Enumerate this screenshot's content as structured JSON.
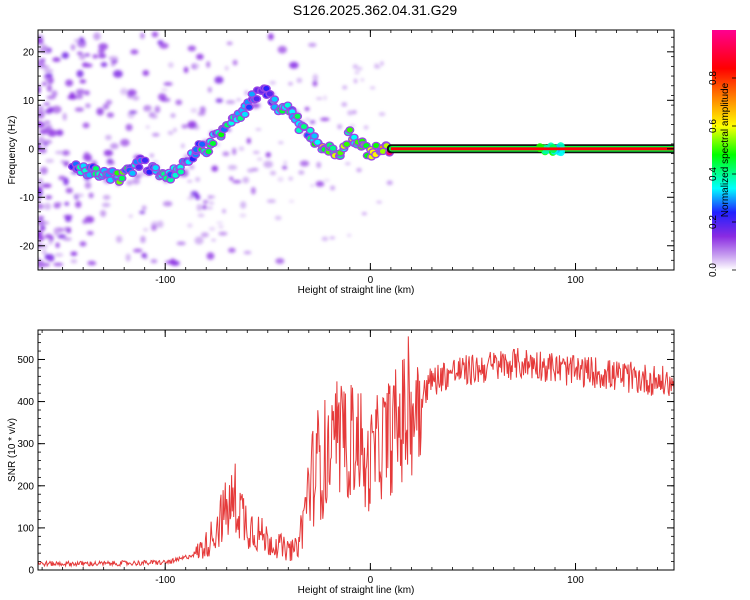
{
  "title": "S126.2025.362.04.31.G29",
  "chart_data": [
    {
      "type": "heatmap",
      "panel": "spectrogram",
      "xlabel": "Height of straight line (km)",
      "ylabel": "Frequency (Hz)",
      "xlim": [
        -162,
        148
      ],
      "ylim": [
        -25,
        24.5
      ],
      "x_ticks": [
        -100,
        0,
        100
      ],
      "y_ticks": [
        -20,
        -10,
        0,
        10,
        20
      ],
      "colorbar": {
        "label": "Normalized spectral amplitude",
        "range": [
          0,
          1
        ],
        "ticks": [
          0.0,
          0.2,
          0.4,
          0.6,
          0.8
        ],
        "tick_labels": [
          "0.0",
          "0.2",
          "0.4",
          "0.6",
          "0.8"
        ],
        "colors": [
          "#ffffff",
          "#c8a0f0",
          "#8a2be2",
          "#2020ff",
          "#00ffff",
          "#00ff00",
          "#ffff00",
          "#ff8000",
          "#ff0000",
          "#ff0090"
        ]
      },
      "ridge": [
        {
          "x": -145,
          "y": -4,
          "amp": 0.35
        },
        {
          "x": -130,
          "y": -5,
          "amp": 0.4
        },
        {
          "x": -122,
          "y": -6,
          "amp": 0.5
        },
        {
          "x": -112,
          "y": -3,
          "amp": 0.3
        },
        {
          "x": -100,
          "y": -6,
          "amp": 0.4
        },
        {
          "x": -92,
          "y": -4,
          "amp": 0.4
        },
        {
          "x": -85,
          "y": 0,
          "amp": 0.35
        },
        {
          "x": -80,
          "y": 0,
          "amp": 0.5
        },
        {
          "x": -75,
          "y": 3,
          "amp": 0.45
        },
        {
          "x": -65,
          "y": 6,
          "amp": 0.4
        },
        {
          "x": -58,
          "y": 10,
          "amp": 0.3
        },
        {
          "x": -52,
          "y": 13,
          "amp": 0.25
        },
        {
          "x": -45,
          "y": 8,
          "amp": 0.4
        },
        {
          "x": -38,
          "y": 8,
          "amp": 0.45
        },
        {
          "x": -35,
          "y": 5,
          "amp": 0.4
        },
        {
          "x": -30,
          "y": 3,
          "amp": 0.4
        },
        {
          "x": -25,
          "y": 1,
          "amp": 0.55
        },
        {
          "x": -20,
          "y": 0,
          "amp": 0.7
        },
        {
          "x": -15,
          "y": -1,
          "amp": 0.5
        },
        {
          "x": -10,
          "y": 3,
          "amp": 0.55
        },
        {
          "x": -5,
          "y": 1,
          "amp": 0.5
        },
        {
          "x": 0,
          "y": -1,
          "amp": 0.55
        },
        {
          "x": 5,
          "y": 0,
          "amp": 0.65
        },
        {
          "x": 10,
          "y": 0,
          "amp": 0.95
        },
        {
          "x": 85,
          "y": 0,
          "amp": 0.6
        },
        {
          "x": 95,
          "y": 0,
          "amp": 0.75
        },
        {
          "x": 145,
          "y": 0,
          "amp": 0.9
        }
      ],
      "steady_band": {
        "x_start": 10,
        "x_end": 148,
        "y": 0
      }
    },
    {
      "type": "line",
      "panel": "snr",
      "xlabel": "Height of straight line (km)",
      "ylabel": "SNR (10 * v/v)",
      "xlim": [
        -162,
        148
      ],
      "ylim": [
        0,
        570
      ],
      "x_ticks": [
        -100,
        0,
        100
      ],
      "y_ticks": [
        0,
        100,
        200,
        300,
        400,
        500
      ],
      "series": [
        {
          "name": "SNR",
          "color": "#e53a3a",
          "x": [
            -162,
            -150,
            -140,
            -130,
            -120,
            -110,
            -100,
            -95,
            -90,
            -85,
            -80,
            -76,
            -72,
            -68,
            -66,
            -64,
            -60,
            -55,
            -50,
            -45,
            -40,
            -36,
            -33,
            -30,
            -25,
            -20,
            -15,
            -10,
            -8,
            -5,
            -3,
            0,
            5,
            10,
            15,
            20,
            25,
            30,
            40,
            50,
            60,
            70,
            80,
            90,
            100,
            110,
            120,
            130,
            140,
            148
          ],
          "values": [
            15,
            15,
            15,
            15,
            16,
            17,
            18,
            22,
            30,
            40,
            60,
            90,
            130,
            150,
            170,
            150,
            110,
            90,
            70,
            60,
            45,
            50,
            110,
            200,
            260,
            270,
            290,
            300,
            310,
            320,
            220,
            260,
            300,
            320,
            350,
            380,
            420,
            450,
            470,
            475,
            485,
            490,
            490,
            480,
            470,
            470,
            460,
            455,
            450,
            440
          ]
        }
      ]
    }
  ]
}
